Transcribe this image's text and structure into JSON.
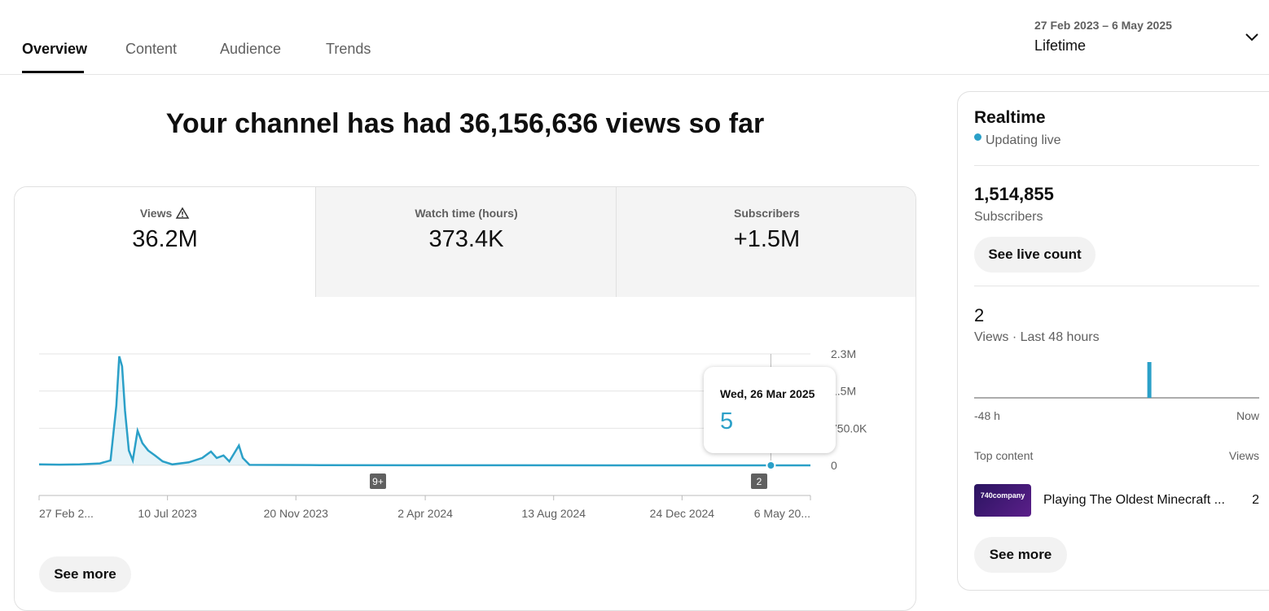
{
  "tabs": [
    "Overview",
    "Content",
    "Audience",
    "Trends"
  ],
  "date_range": {
    "dates": "27 Feb 2023 – 6 May 2025",
    "period": "Lifetime"
  },
  "headline": "Your channel has had 36,156,636 views so far",
  "metrics": [
    {
      "label": "Views",
      "value": "36.2M"
    },
    {
      "label": "Watch time (hours)",
      "value": "373.4K"
    },
    {
      "label": "Subscribers",
      "value": "+1.5M"
    }
  ],
  "chart_data": {
    "type": "line",
    "color": "#2ba0c8",
    "grid": true,
    "x": [
      "2023-02-27",
      "2023-03-20",
      "2023-04-10",
      "2023-05-01",
      "2023-05-12",
      "2023-05-18",
      "2023-05-21",
      "2023-05-24",
      "2023-05-27",
      "2023-05-31",
      "2023-06-04",
      "2023-06-09",
      "2023-06-14",
      "2023-06-20",
      "2023-06-27",
      "2023-07-05",
      "2023-07-15",
      "2023-08-01",
      "2023-08-15",
      "2023-08-24",
      "2023-08-30",
      "2023-09-06",
      "2023-09-12",
      "2023-09-22",
      "2023-09-26",
      "2023-10-03",
      "2023-12-15",
      "2024-06-01",
      "2025-03-26",
      "2025-05-06"
    ],
    "values": [
      20000,
      15000,
      20000,
      40000,
      100000,
      1200000,
      2200000,
      2000000,
      1100000,
      300000,
      100000,
      700000,
      450000,
      300000,
      200000,
      80000,
      20000,
      60000,
      150000,
      280000,
      150000,
      200000,
      80000,
      400000,
      150000,
      10000,
      5000,
      2000,
      5,
      2
    ],
    "xlim": [
      "2023-02-27",
      "2025-05-06"
    ],
    "xticks": [
      {
        "value": "2023-02-27",
        "label": "27 Feb 2..."
      },
      {
        "value": "2023-07-10",
        "label": "10 Jul 2023"
      },
      {
        "value": "2023-11-20",
        "label": "20 Nov 2023"
      },
      {
        "value": "2024-04-02",
        "label": "2 Apr 2024"
      },
      {
        "value": "2024-08-13",
        "label": "13 Aug 2024"
      },
      {
        "value": "2024-12-24",
        "label": "24 Dec 2024"
      },
      {
        "value": "2025-05-06",
        "label": "6 May 20..."
      }
    ],
    "ylim": [
      0,
      2250000
    ],
    "yticks": [
      {
        "value": 0,
        "label": "0"
      },
      {
        "value": 750000,
        "label": "750.0K"
      },
      {
        "value": 1500000,
        "label": "1.5M"
      },
      {
        "value": 2250000,
        "label": "2.3M"
      }
    ],
    "tooltip": {
      "date": "Wed, 26 Mar 2025",
      "value": 5
    },
    "markers": [
      "9+",
      "2"
    ]
  },
  "see_more": "See more",
  "realtime": {
    "title": "Realtime",
    "status": "Updating live",
    "subscribers": {
      "count": "1,514,855",
      "label": "Subscribers"
    },
    "live_button": "See live count",
    "views": {
      "count": 2,
      "label": "Views · Last 48 hours"
    },
    "chart": {
      "type": "bar",
      "color": "#2ba0c8",
      "values": [
        0,
        0,
        0,
        0,
        0,
        0,
        0,
        0,
        0,
        0,
        0,
        0,
        0,
        0,
        0,
        0,
        0,
        0,
        0,
        0,
        0,
        0,
        0,
        0,
        0,
        0,
        0,
        0,
        0,
        2,
        0,
        0,
        0,
        0,
        0,
        0,
        0,
        0,
        0,
        0,
        0,
        0,
        0,
        0,
        0,
        0,
        0,
        0
      ],
      "x_labels": [
        "-48 h",
        "Now"
      ]
    },
    "top_content": {
      "header": "Top content",
      "views_header": "Views",
      "items": [
        {
          "thumbnail": "740company",
          "title": "Playing The Oldest Minecraft ...",
          "views": 2
        }
      ]
    },
    "see_more": "See more"
  }
}
